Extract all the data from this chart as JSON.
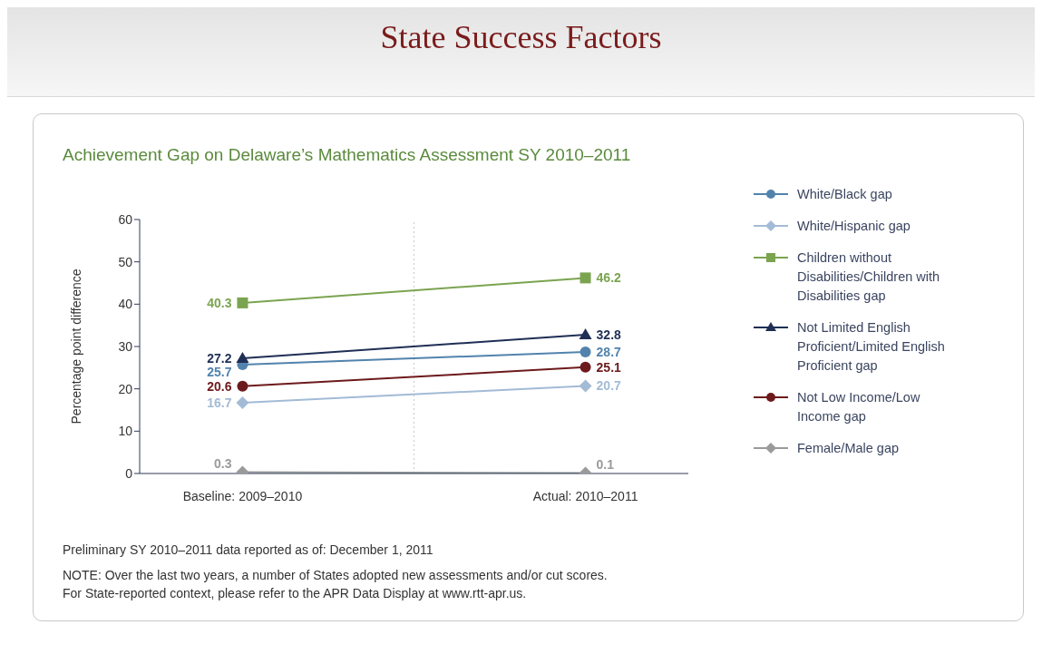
{
  "chart_data": {
    "type": "line",
    "title": "State Success Factors",
    "subtitle": "Achievement Gap on Delaware’s Mathematics Assessment SY 2010–2011",
    "ylabel": "Percentage point difference",
    "categories": [
      "Baseline: 2009–2010",
      "Actual: 2010–2011"
    ],
    "series": [
      {
        "name": "White/Black gap",
        "color": "#5283ad",
        "marker": "circle",
        "values": [
          25.7,
          28.7
        ]
      },
      {
        "name": "White/Hispanic gap",
        "color": "#a3bbd6",
        "marker": "diamond",
        "values": [
          16.7,
          20.7
        ]
      },
      {
        "name": "Children without Disabilities/Children with Disabilities gap",
        "color": "#7ba450",
        "marker": "square",
        "values": [
          40.3,
          46.2
        ]
      },
      {
        "name": "Not Limited English Proficient/Limited English Proficient gap",
        "color": "#1f2f55",
        "marker": "triangle",
        "values": [
          27.2,
          32.8
        ]
      },
      {
        "name": "Not Low Income/Low Income gap",
        "color": "#6d1a1c",
        "marker": "circle",
        "values": [
          20.6,
          25.1
        ]
      },
      {
        "name": "Female/Male gap",
        "color": "#9a9a9a",
        "marker": "diamond",
        "values": [
          0.3,
          0.1
        ]
      }
    ],
    "ylim": [
      0,
      60
    ],
    "yticks": [
      0,
      10,
      20,
      30,
      40,
      50,
      60
    ],
    "grid": false,
    "legend": "right",
    "data_labels": true,
    "annotations": [
      "Preliminary SY 2010–2011 data reported as of: December 1, 2011",
      "NOTE: Over the last two years, a number of States adopted new assessments and/or cut scores.",
      "For State-reported context, please refer to the APR Data Display at www.rtt-apr.us."
    ]
  }
}
